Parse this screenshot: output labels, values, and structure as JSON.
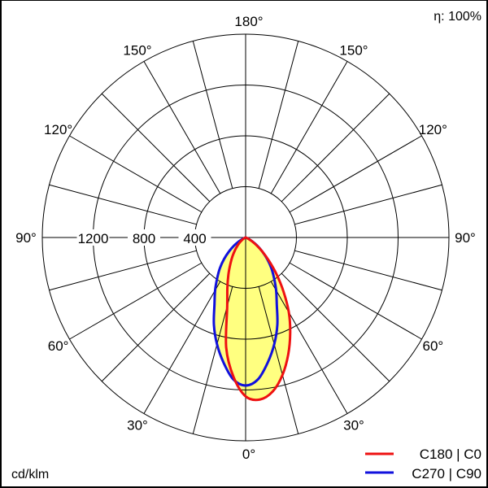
{
  "chart_data": {
    "type": "polar",
    "unit_label": "cd/klm",
    "efficiency_label": "η: 100%",
    "radial_ticks": [
      400,
      800,
      1200
    ],
    "radial_max": 1600,
    "angle_labels": [
      "0°",
      "30°",
      "60°",
      "90°",
      "120°",
      "150°",
      "180°"
    ],
    "angle_step_deg": 15,
    "fill_color": "#ffff80",
    "gamma": [
      0,
      5,
      10,
      15,
      20,
      25,
      30,
      35,
      40,
      45,
      50,
      55,
      60,
      65,
      70,
      75,
      80,
      85,
      90
    ],
    "series": [
      {
        "name": "C180 | C0",
        "color": "#ee1111",
        "C0": [
          1250,
          1280,
          1230,
          1120,
          980,
          830,
          680,
          520,
          380,
          260,
          170,
          100,
          50,
          20,
          5,
          0,
          0,
          0,
          0
        ],
        "C180": [
          1250,
          1100,
          880,
          560,
          420,
          320,
          240,
          180,
          130,
          90,
          60,
          35,
          18,
          8,
          2,
          0,
          0,
          0,
          0
        ]
      },
      {
        "name": "C270 | C90",
        "color": "#1111dd",
        "C90": [
          1165,
          1120,
          1000,
          870,
          730,
          580,
          480,
          390,
          315,
          240,
          170,
          110,
          60,
          25,
          8,
          0,
          0,
          0,
          0
        ],
        "C270": [
          1165,
          1120,
          1000,
          870,
          730,
          580,
          480,
          390,
          315,
          240,
          170,
          110,
          60,
          25,
          8,
          0,
          0,
          0,
          0
        ]
      }
    ]
  }
}
